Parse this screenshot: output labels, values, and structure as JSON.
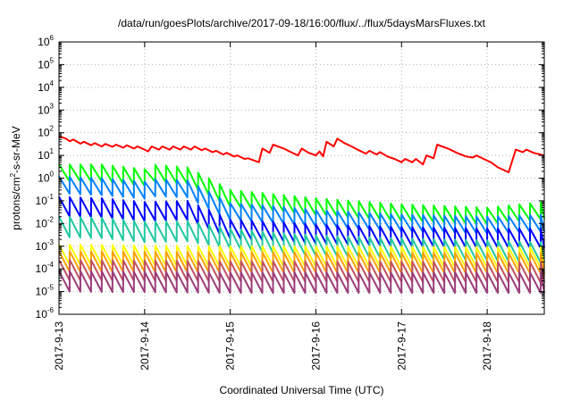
{
  "chart_data": {
    "type": "line",
    "title": "/data/run/goesPlots/archive/2017-09-18/16:00/flux/../flux/5daysMarsFluxes.txt",
    "xlabel": "Coordinated Universal Time (UTC)",
    "ylabel": {
      "prefix": "protons/cm",
      "sup": "2",
      "suffix": "-s-sr-MeV"
    },
    "y_scale": "log",
    "ylim": [
      1e-06,
      1000000.0
    ],
    "xlim": [
      "2017-09-13 00:00",
      "2017-09-18 16:00"
    ],
    "grid": true,
    "legend": "none",
    "y_ticks": [
      {
        "value": 1e-06,
        "base": "10",
        "exp": "-6"
      },
      {
        "value": 1e-05,
        "base": "10",
        "exp": "-5"
      },
      {
        "value": 0.0001,
        "base": "10",
        "exp": "-4"
      },
      {
        "value": 0.001,
        "base": "10",
        "exp": "-3"
      },
      {
        "value": 0.01,
        "base": "10",
        "exp": "-2"
      },
      {
        "value": 0.1,
        "base": "10",
        "exp": "-1"
      },
      {
        "value": 1,
        "base": "10",
        "exp": "0"
      },
      {
        "value": 10,
        "base": "10",
        "exp": "1"
      },
      {
        "value": 100,
        "base": "10",
        "exp": "2"
      },
      {
        "value": 1000,
        "base": "10",
        "exp": "3"
      },
      {
        "value": 10000,
        "base": "10",
        "exp": "4"
      },
      {
        "value": 100000,
        "base": "10",
        "exp": "5"
      },
      {
        "value": 1000000,
        "base": "10",
        "exp": "6"
      }
    ],
    "x_ticks": [
      {
        "value": "2017-09-13 00:00",
        "label": "2017-9-13"
      },
      {
        "value": "2017-09-14 00:00",
        "label": "2017-9-14"
      },
      {
        "value": "2017-09-15 00:00",
        "label": "2017-9-15"
      },
      {
        "value": "2017-09-16 00:00",
        "label": "2017-9-16"
      },
      {
        "value": "2017-09-17 00:00",
        "label": "2017-9-17"
      },
      {
        "value": "2017-09-18 00:00",
        "label": "2017-9-18"
      }
    ],
    "series": [
      {
        "color": "#ff0000",
        "points": [
          [
            "2017-09-13 00:00",
            70
          ],
          [
            "2017-09-13 02:00",
            55
          ],
          [
            "2017-09-13 03:00",
            42
          ],
          [
            "2017-09-13 04:00",
            50
          ],
          [
            "2017-09-13 06:00",
            33
          ],
          [
            "2017-09-13 07:00",
            40
          ],
          [
            "2017-09-13 09:00",
            28
          ],
          [
            "2017-09-13 10:00",
            35
          ],
          [
            "2017-09-13 12:00",
            25
          ],
          [
            "2017-09-13 13:00",
            32
          ],
          [
            "2017-09-13 15:00",
            24
          ],
          [
            "2017-09-13 16:00",
            30
          ],
          [
            "2017-09-13 18:00",
            22
          ],
          [
            "2017-09-13 19:00",
            28
          ],
          [
            "2017-09-13 21:00",
            20
          ],
          [
            "2017-09-13 22:00",
            25
          ],
          [
            "2017-09-14 00:00",
            18
          ],
          [
            "2017-09-14 01:00",
            15
          ],
          [
            "2017-09-14 02:00",
            25
          ],
          [
            "2017-09-14 04:00",
            18
          ],
          [
            "2017-09-14 05:00",
            25
          ],
          [
            "2017-09-14 07:00",
            18
          ],
          [
            "2017-09-14 08:00",
            25
          ],
          [
            "2017-09-14 10:00",
            18
          ],
          [
            "2017-09-14 11:00",
            25
          ],
          [
            "2017-09-14 13:00",
            18
          ],
          [
            "2017-09-14 14:00",
            25
          ],
          [
            "2017-09-14 16:00",
            17
          ],
          [
            "2017-09-14 17:00",
            20
          ],
          [
            "2017-09-14 19:00",
            14
          ],
          [
            "2017-09-14 20:00",
            16
          ],
          [
            "2017-09-14 22:00",
            11
          ],
          [
            "2017-09-14 23:00",
            13
          ],
          [
            "2017-09-15 01:00",
            9
          ],
          [
            "2017-09-15 02:00",
            10
          ],
          [
            "2017-09-15 04:00",
            7
          ],
          [
            "2017-09-15 05:00",
            7.5
          ],
          [
            "2017-09-15 08:00",
            5
          ],
          [
            "2017-09-15 09:00",
            20
          ],
          [
            "2017-09-15 11:00",
            13
          ],
          [
            "2017-09-15 12:00",
            30
          ],
          [
            "2017-09-15 15:00",
            20
          ],
          [
            "2017-09-15 17:00",
            14
          ],
          [
            "2017-09-15 19:00",
            10
          ],
          [
            "2017-09-15 20:00",
            20
          ],
          [
            "2017-09-15 22:00",
            13
          ],
          [
            "2017-09-16 00:00",
            10
          ],
          [
            "2017-09-16 01:00",
            15
          ],
          [
            "2017-09-16 02:00",
            9
          ],
          [
            "2017-09-16 03:00",
            40
          ],
          [
            "2017-09-16 05:00",
            25
          ],
          [
            "2017-09-16 06:00",
            55
          ],
          [
            "2017-09-16 08:00",
            35
          ],
          [
            "2017-09-16 10:00",
            25
          ],
          [
            "2017-09-16 12:00",
            17
          ],
          [
            "2017-09-16 14:00",
            12
          ],
          [
            "2017-09-16 15:00",
            16
          ],
          [
            "2017-09-16 17:00",
            11
          ],
          [
            "2017-09-16 18:00",
            14
          ],
          [
            "2017-09-16 20:00",
            9
          ],
          [
            "2017-09-16 22:00",
            7
          ],
          [
            "2017-09-17 00:00",
            5
          ],
          [
            "2017-09-17 01:00",
            7
          ],
          [
            "2017-09-17 03:00",
            5
          ],
          [
            "2017-09-17 04:00",
            7
          ],
          [
            "2017-09-17 06:00",
            4
          ],
          [
            "2017-09-17 07:00",
            10
          ],
          [
            "2017-09-17 09:00",
            7.5
          ],
          [
            "2017-09-17 10:00",
            30
          ],
          [
            "2017-09-17 13:00",
            20
          ],
          [
            "2017-09-17 16:00",
            12
          ],
          [
            "2017-09-17 18:00",
            9
          ],
          [
            "2017-09-17 20:00",
            8
          ],
          [
            "2017-09-17 21:00",
            10
          ],
          [
            "2017-09-17 23:00",
            7
          ],
          [
            "2017-09-18 01:00",
            5
          ],
          [
            "2017-09-18 03:00",
            3
          ],
          [
            "2017-09-18 06:00",
            1.8
          ],
          [
            "2017-09-18 08:00",
            18
          ],
          [
            "2017-09-18 10:00",
            14
          ],
          [
            "2017-09-18 11:00",
            18
          ],
          [
            "2017-09-18 13:00",
            13
          ],
          [
            "2017-09-18 16:00",
            10
          ]
        ]
      },
      {
        "color": "#00ff00",
        "sawtooth": {
          "start": "2017-09-13 00:00",
          "end": "2017-09-18 16:00",
          "period_hours": 3,
          "amplitude_decades": 0.75,
          "knots": [
            [
              "2017-09-13 00:00",
              4
            ],
            [
              "2017-09-13 12:00",
              4
            ],
            [
              "2017-09-14 00:00",
              2.5
            ],
            [
              "2017-09-14 01:00",
              0.9
            ],
            [
              "2017-09-14 02:00",
              4
            ],
            [
              "2017-09-14 12:00",
              3
            ],
            [
              "2017-09-14 18:00",
              1
            ],
            [
              "2017-09-15 00:00",
              0.3
            ],
            [
              "2017-09-15 12:00",
              0.2
            ],
            [
              "2017-09-16 00:00",
              0.13
            ],
            [
              "2017-09-17 00:00",
              0.07
            ],
            [
              "2017-09-18 00:00",
              0.05
            ],
            [
              "2017-09-18 16:00",
              0.09
            ]
          ]
        }
      },
      {
        "color": "#0080ff",
        "sawtooth": {
          "start": "2017-09-13 00:00",
          "end": "2017-09-18 16:00",
          "period_hours": 3,
          "amplitude_decades": 0.75,
          "knots": [
            [
              "2017-09-13 00:00",
              1.2
            ],
            [
              "2017-09-13 12:00",
              1
            ],
            [
              "2017-09-14 00:00",
              0.7
            ],
            [
              "2017-09-14 02:00",
              0.9
            ],
            [
              "2017-09-14 12:00",
              0.8
            ],
            [
              "2017-09-14 18:00",
              0.25
            ],
            [
              "2017-09-15 00:00",
              0.08
            ],
            [
              "2017-09-15 12:00",
              0.06
            ],
            [
              "2017-09-16 00:00",
              0.04
            ],
            [
              "2017-09-17 00:00",
              0.025
            ],
            [
              "2017-09-18 00:00",
              0.02
            ],
            [
              "2017-09-18 16:00",
              0.025
            ]
          ]
        }
      },
      {
        "color": "#0000ff",
        "sawtooth": {
          "start": "2017-09-13 00:00",
          "end": "2017-09-18 16:00",
          "period_hours": 3,
          "amplitude_decades": 0.85,
          "knots": [
            [
              "2017-09-13 00:00",
              0.15
            ],
            [
              "2017-09-13 12:00",
              0.13
            ],
            [
              "2017-09-14 00:00",
              0.09
            ],
            [
              "2017-09-14 12:00",
              0.1
            ],
            [
              "2017-09-14 18:00",
              0.04
            ],
            [
              "2017-09-15 00:00",
              0.015
            ],
            [
              "2017-09-15 12:00",
              0.012
            ],
            [
              "2017-09-16 00:00",
              0.009
            ],
            [
              "2017-09-17 00:00",
              0.007
            ],
            [
              "2017-09-18 00:00",
              0.006
            ],
            [
              "2017-09-18 16:00",
              0.006
            ]
          ]
        }
      },
      {
        "color": "#20c8a0",
        "sawtooth": {
          "start": "2017-09-13 00:00",
          "end": "2017-09-18 16:00",
          "period_hours": 3,
          "amplitude_decades": 0.9,
          "knots": [
            [
              "2017-09-13 00:00",
              0.02
            ],
            [
              "2017-09-13 12:00",
              0.018
            ],
            [
              "2017-09-14 00:00",
              0.012
            ],
            [
              "2017-09-14 12:00",
              0.013
            ],
            [
              "2017-09-15 00:00",
              0.006
            ],
            [
              "2017-09-15 12:00",
              0.004
            ],
            [
              "2017-09-16 00:00",
              0.003
            ],
            [
              "2017-09-17 00:00",
              0.0022
            ],
            [
              "2017-09-18 00:00",
              0.0018
            ],
            [
              "2017-09-18 16:00",
              0.0015
            ]
          ]
        }
      },
      {
        "color": "#ffff00",
        "sawtooth": {
          "start": "2017-09-13 00:00",
          "end": "2017-09-18 16:00",
          "period_hours": 3,
          "amplitude_decades": 0.9,
          "knots": [
            [
              "2017-09-13 00:00",
              0.0012
            ],
            [
              "2017-09-14 00:00",
              0.0011
            ],
            [
              "2017-09-15 00:00",
              0.001
            ],
            [
              "2017-09-16 00:00",
              0.001
            ],
            [
              "2017-09-17 00:00",
              0.00095
            ],
            [
              "2017-09-18 00:00",
              0.0009
            ],
            [
              "2017-09-18 16:00",
              0.0009
            ]
          ]
        }
      },
      {
        "color": "#ffa000",
        "sawtooth": {
          "start": "2017-09-13 00:00",
          "end": "2017-09-18 16:00",
          "period_hours": 3,
          "amplitude_decades": 0.9,
          "knots": [
            [
              "2017-09-13 00:00",
              0.0006
            ],
            [
              "2017-09-15 00:00",
              0.00055
            ],
            [
              "2017-09-18 16:00",
              0.0005
            ]
          ]
        }
      },
      {
        "color": "#c05060",
        "sawtooth": {
          "start": "2017-09-13 00:00",
          "end": "2017-09-18 16:00",
          "period_hours": 3,
          "amplitude_decades": 0.9,
          "knots": [
            [
              "2017-09-13 00:00",
              0.00025
            ],
            [
              "2017-09-15 00:00",
              0.00022
            ],
            [
              "2017-09-18 16:00",
              0.0002
            ]
          ]
        }
      },
      {
        "color": "#9a3c7a",
        "sawtooth": {
          "start": "2017-09-13 00:00",
          "end": "2017-09-18 16:00",
          "period_hours": 3,
          "amplitude_decades": 0.9,
          "knots": [
            [
              "2017-09-13 00:00",
              8e-05
            ],
            [
              "2017-09-15 00:00",
              7e-05
            ],
            [
              "2017-09-18 16:00",
              7e-05
            ]
          ]
        }
      }
    ]
  }
}
